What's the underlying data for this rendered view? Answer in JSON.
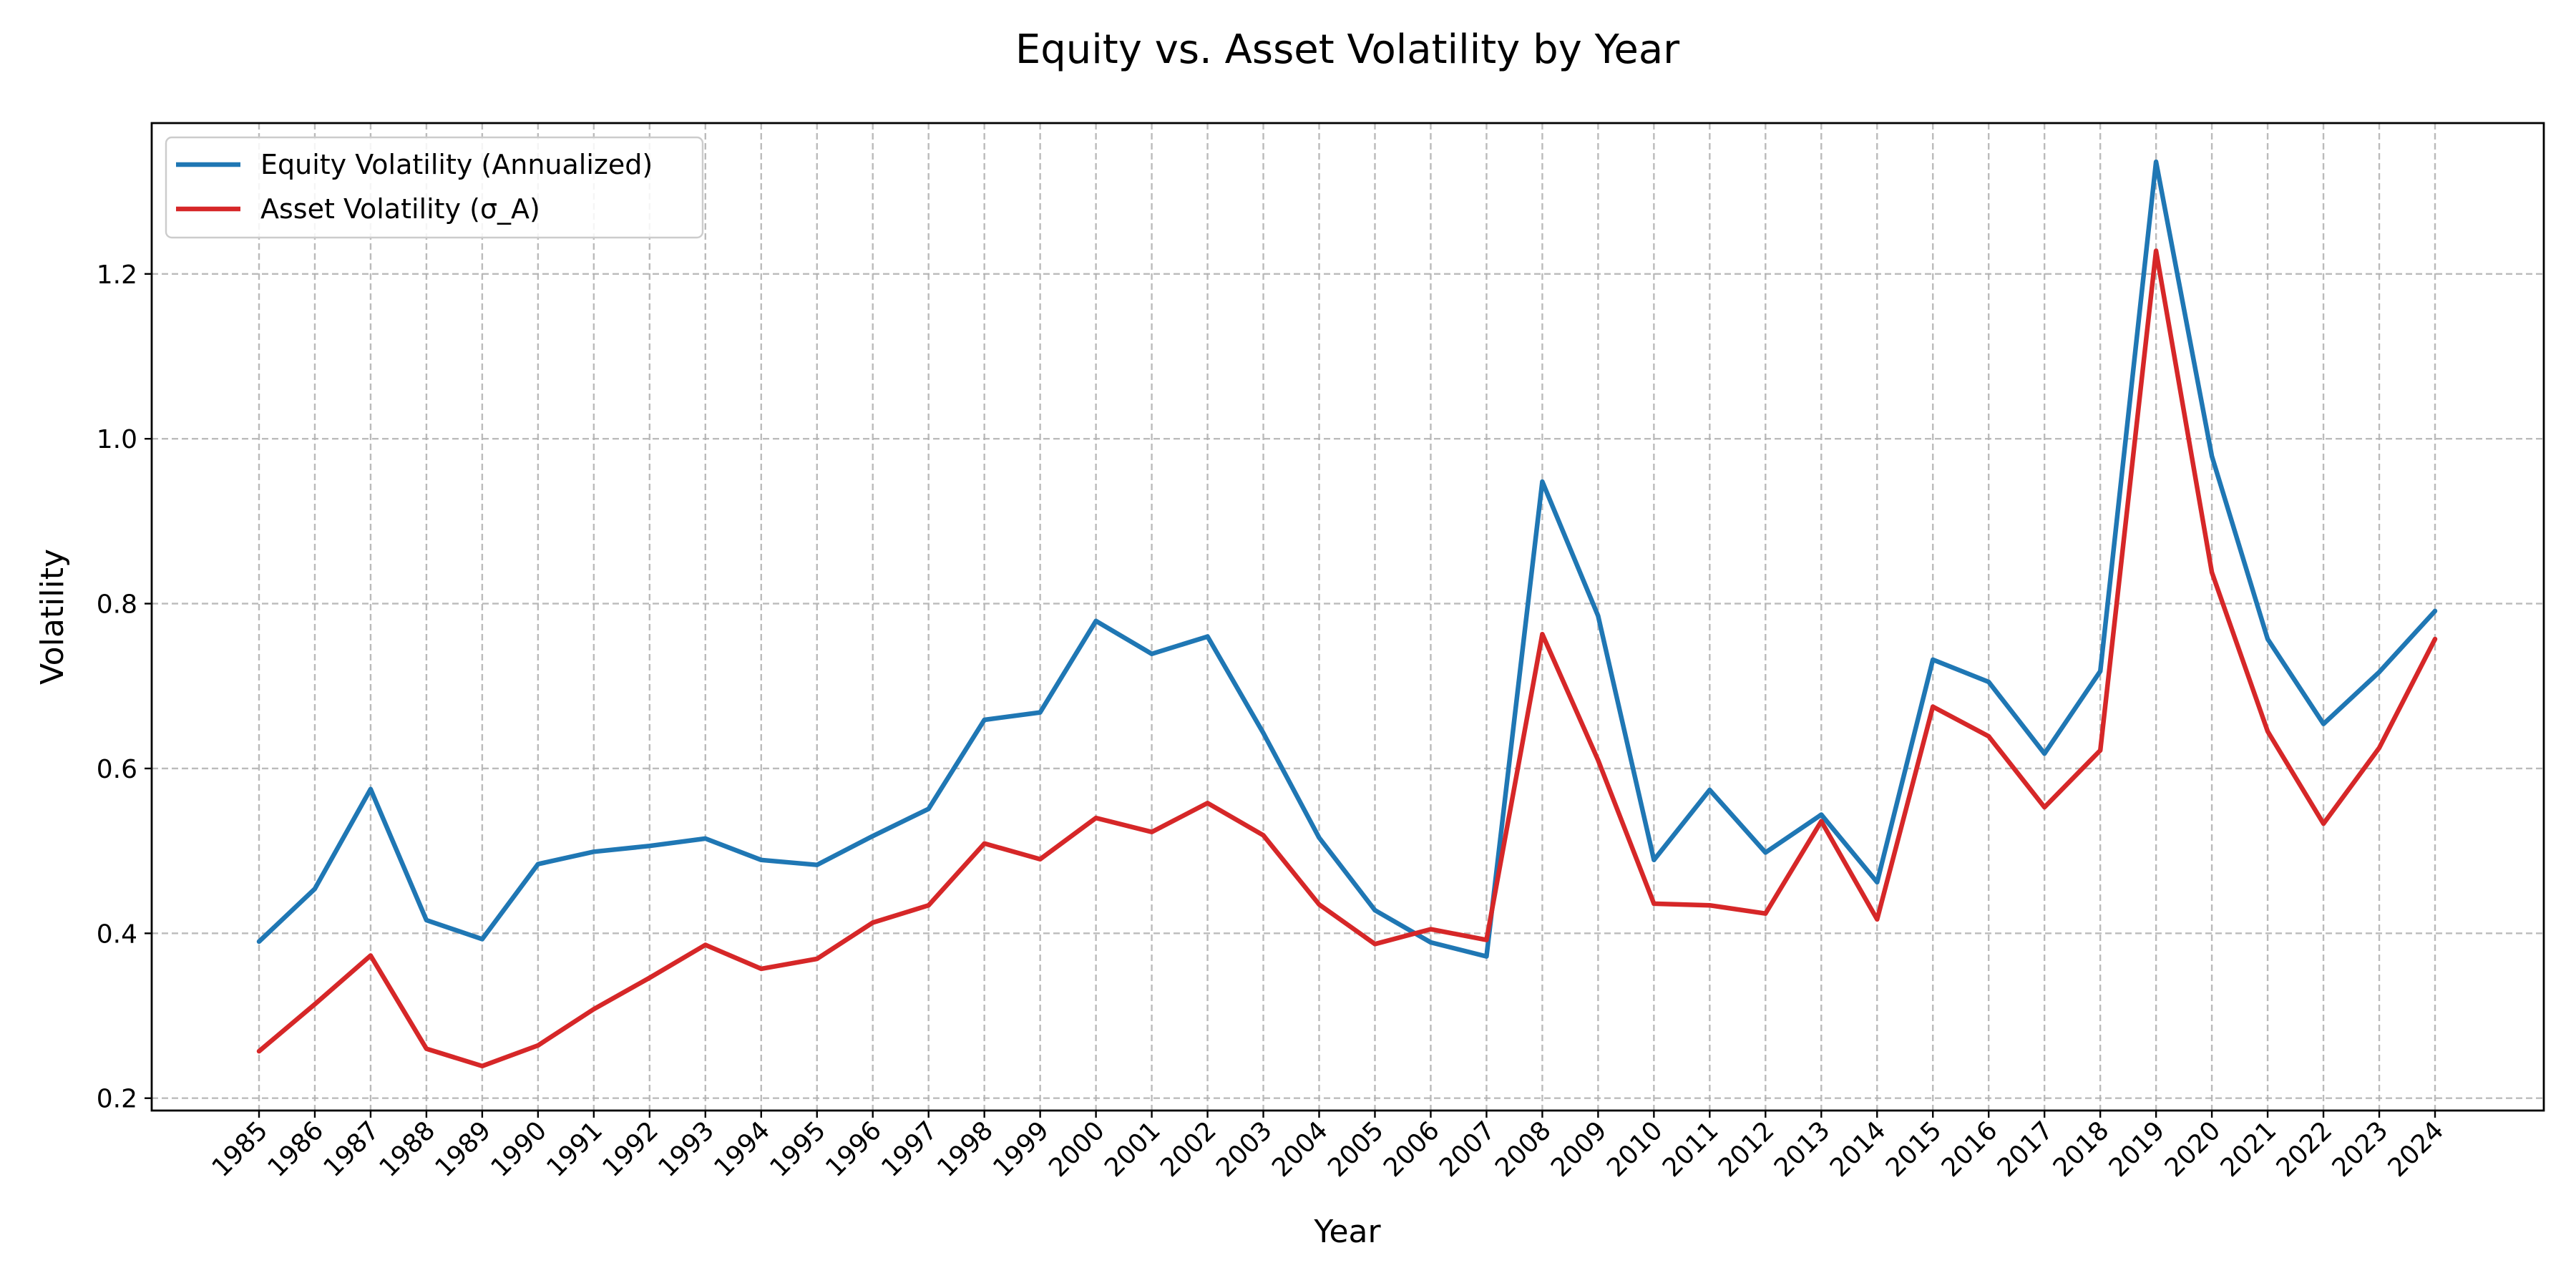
{
  "chart_data": {
    "type": "line",
    "title": "Equity vs. Asset Volatility by Year",
    "xlabel": "Year",
    "ylabel": "Volatility",
    "ylim": [
      0.185,
      1.383
    ],
    "yticks": [
      "0.2",
      "0.4",
      "0.6",
      "0.8",
      "1.0",
      "1.2"
    ],
    "grid": true,
    "legend_position": "upper-left",
    "categories": [
      "1985",
      "1986",
      "1987",
      "1988",
      "1989",
      "1990",
      "1991",
      "1992",
      "1993",
      "1994",
      "1995",
      "1996",
      "1997",
      "1998",
      "1999",
      "2000",
      "2001",
      "2002",
      "2003",
      "2004",
      "2005",
      "2006",
      "2007",
      "2008",
      "2009",
      "2010",
      "2011",
      "2012",
      "2013",
      "2014",
      "2015",
      "2016",
      "2017",
      "2018",
      "2019",
      "2020",
      "2021",
      "2022",
      "2023",
      "2024"
    ],
    "series": [
      {
        "name": "Equity Volatility (Annualized)",
        "color": "#1f77b4",
        "values": [
          0.39,
          0.454,
          0.575,
          0.416,
          0.393,
          0.484,
          0.499,
          0.506,
          0.515,
          0.489,
          0.483,
          0.518,
          0.551,
          0.659,
          0.668,
          0.779,
          0.739,
          0.76,
          0.643,
          0.516,
          0.428,
          0.389,
          0.372,
          0.948,
          0.785,
          0.489,
          0.574,
          0.498,
          0.544,
          0.462,
          0.732,
          0.705,
          0.618,
          0.718,
          1.336,
          0.979,
          0.757,
          0.654,
          0.717,
          0.791
        ]
      },
      {
        "name": "Asset Volatility (σ_A)",
        "color": "#d62728",
        "values": [
          0.257,
          0.314,
          0.373,
          0.26,
          0.239,
          0.264,
          0.308,
          0.346,
          0.386,
          0.357,
          0.369,
          0.413,
          0.434,
          0.509,
          0.49,
          0.54,
          0.523,
          0.558,
          0.519,
          0.435,
          0.387,
          0.405,
          0.392,
          0.763,
          0.61,
          0.436,
          0.434,
          0.424,
          0.536,
          0.417,
          0.675,
          0.639,
          0.553,
          0.622,
          1.228,
          0.838,
          0.645,
          0.533,
          0.625,
          0.757
        ]
      }
    ]
  }
}
